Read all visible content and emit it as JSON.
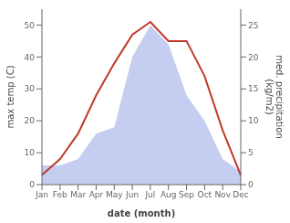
{
  "chart_data": {
    "type": "line",
    "categories": [
      "Jan",
      "Feb",
      "Mar",
      "Apr",
      "May",
      "Jun",
      "Jul",
      "Aug",
      "Sep",
      "Oct",
      "Nov",
      "Dec"
    ],
    "series": [
      {
        "type": "area",
        "axis": "y2",
        "color": "#c5cef0",
        "values": [
          3,
          3,
          4,
          8,
          9,
          20,
          25,
          22,
          14,
          10,
          4,
          2
        ]
      },
      {
        "type": "line",
        "color": "#c0392b",
        "values": [
          3,
          8,
          16,
          28,
          38,
          47,
          51,
          45,
          45,
          34,
          17,
          3
        ]
      }
    ],
    "x_label": "date (month)",
    "y_label": "max temp (C)",
    "y2_label": "med. precipitation\n(kg/m2)",
    "ylim": [
      0,
      55
    ],
    "yticks": [
      0,
      10,
      20,
      30,
      40,
      50
    ],
    "y2lim": [
      0,
      27.5
    ],
    "y2ticks": [
      0,
      5,
      10,
      15,
      20,
      25
    ],
    "grid": false
  }
}
